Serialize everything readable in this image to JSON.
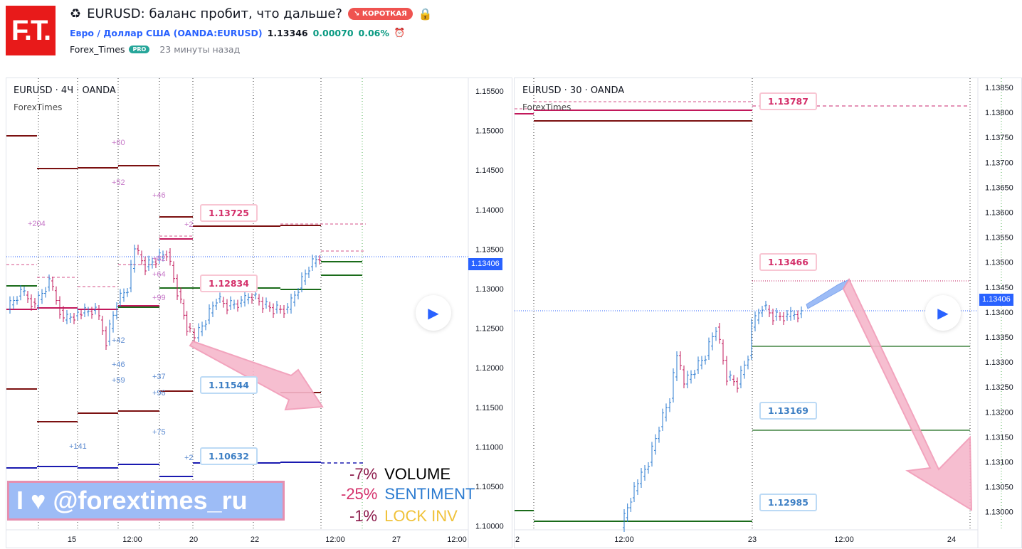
{
  "header": {
    "logo_text": "F.T.",
    "recycle_icon": "♻",
    "title": "EURUSD: баланс пробит, что дальше?",
    "badge": "↘ КОРОТКАЯ",
    "lock_icon": "🔒",
    "symbol_name": "Евро / Доллар США",
    "symbol_code": "(OANDA:EURUSD)",
    "price": "1.13346",
    "change": "0.00070",
    "change_pct": "0.06%",
    "alarm_icon": "⏰",
    "author": "Forex_Times",
    "pro_badge": "PRO",
    "time_ago": "23 минуты назад"
  },
  "left_chart": {
    "label": "EURUSD · 4Ч · OANDA",
    "indicator": "ForexTimes",
    "price_axis": [
      "1.15500",
      "1.15000",
      "1.14500",
      "1.14000",
      "1.13500",
      "1.13000",
      "1.12500",
      "1.12000",
      "1.11500",
      "1.11000",
      "1.10500",
      "1.10000"
    ],
    "time_axis": [
      "15",
      "12:00",
      "20",
      "22",
      "12:00",
      "27",
      "12:00"
    ],
    "current_price": "1.13406",
    "callouts": [
      "1.13725",
      "1.12834",
      "1.11544",
      "1.10632"
    ],
    "annotations_pink": [
      "+60",
      "+52",
      "+46",
      "+204",
      "+2",
      "+82",
      "+64",
      "+99"
    ],
    "annotations_blue": [
      "+42",
      "+46",
      "+59",
      "+37",
      "+96",
      "+75",
      "+141",
      "+2"
    ],
    "stats": [
      {
        "pct": "-7%",
        "name": "VOLUME",
        "pct_color": "#8b1a4a",
        "name_color": "#000000"
      },
      {
        "pct": "-25%",
        "name": "SENTIMENT",
        "pct_color": "#d4306a",
        "name_color": "#2b7bd0"
      },
      {
        "pct": "-1%",
        "name": "LOCK INV",
        "pct_color": "#8b1a4a",
        "name_color": "#f0c23a"
      }
    ],
    "banner": "I ♥ @forextimes_ru"
  },
  "right_chart": {
    "label": "EURUSD · 30 · OANDA",
    "indicator": "ForexTimes",
    "price_axis": [
      "1.13850",
      "1.13800",
      "1.13750",
      "1.13700",
      "1.13650",
      "1.13600",
      "1.13550",
      "1.13500",
      "1.13450",
      "1.13400",
      "1.13350",
      "1.13300",
      "1.13250",
      "1.13200",
      "1.13150",
      "1.13100",
      "1.13050",
      "1.13000"
    ],
    "time_axis": [
      "2",
      "12:00",
      "23",
      "12:00",
      "24"
    ],
    "current_price": "1.13406",
    "callouts": [
      "1.13787",
      "1.13466",
      "1.13169",
      "1.12985"
    ]
  },
  "colors": {
    "up": "#2b7bd0",
    "down": "#c2185b",
    "accent": "#2962ff"
  }
}
